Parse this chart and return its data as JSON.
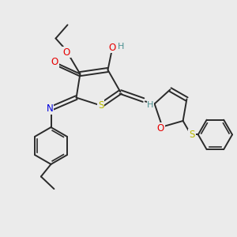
{
  "bg_color": "#ebebeb",
  "bond_color": "#2a2a2a",
  "atom_colors": {
    "O": "#e60000",
    "S": "#b8b800",
    "N": "#0000dd",
    "H_teal": "#4a9090",
    "C": "#2a2a2a"
  },
  "figsize": [
    3.0,
    3.0
  ],
  "dpi": 100
}
